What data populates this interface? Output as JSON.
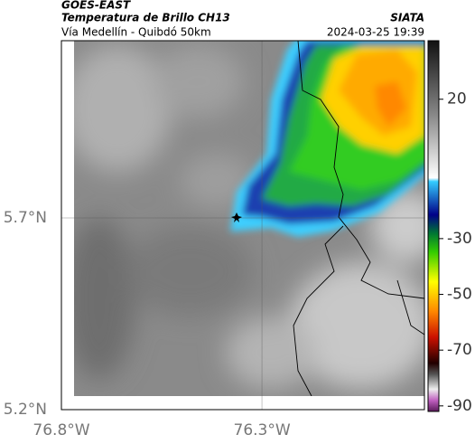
{
  "header": {
    "title": "GOES-EAST",
    "subtitle": "Temperatura de Brillo CH13",
    "route": "Vía Medellín - Quibdó 50km",
    "source": "SIATA",
    "timestamp": "2024-03-25 19:39"
  },
  "map": {
    "xlim": [
      -76.8,
      -75.895
    ],
    "ylim": [
      5.2,
      6.162
    ],
    "xticks": [
      {
        "value": -76.8,
        "label": "76.8°W"
      },
      {
        "value": -76.3,
        "label": "76.3°W"
      }
    ],
    "yticks": [
      {
        "value": 5.7,
        "label": "5.7°N"
      },
      {
        "value": 5.2,
        "label": "5.2°N"
      }
    ],
    "grid": true
  },
  "colorbar": {
    "lim": [
      -92,
      41
    ],
    "ticks": [
      20,
      -30,
      -50,
      -70,
      -90
    ]
  }
}
